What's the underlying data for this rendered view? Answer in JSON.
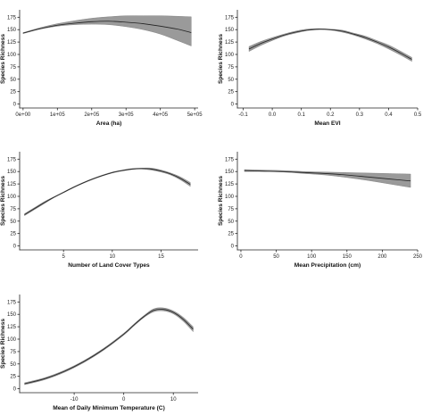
{
  "chart_data": [
    {
      "type": "line",
      "xlabel": "Area (ha)",
      "ylabel": "Species Richness",
      "xlim": [
        -10000,
        510000
      ],
      "ylim": [
        -8,
        190
      ],
      "x_ticks": [
        0,
        100000,
        200000,
        300000,
        400000,
        500000
      ],
      "x_tick_labels": [
        "0e+00",
        "1e+05",
        "2e+05",
        "3e+05",
        "4e+05",
        "5e+05"
      ],
      "y_ticks": [
        0,
        25,
        50,
        75,
        100,
        125,
        150,
        175
      ],
      "y_tick_labels": [
        "0",
        "25",
        "50",
        "75",
        "100",
        "125",
        "150",
        "175"
      ],
      "series": [
        {
          "x": [
            0,
            50000,
            100000,
            150000,
            200000,
            250000,
            300000,
            350000,
            400000,
            450000,
            490000
          ],
          "fit": [
            143,
            152,
            159,
            163,
            166,
            167,
            165,
            162,
            157,
            151,
            144
          ],
          "lower": [
            142,
            151,
            157,
            160,
            161,
            160,
            156,
            150,
            141,
            128,
            117
          ],
          "upper": [
            144,
            154,
            162,
            168,
            173,
            176,
            178,
            178,
            178,
            177,
            176
          ]
        }
      ]
    },
    {
      "type": "line",
      "xlabel": "Mean EVI",
      "ylabel": "Species Richness",
      "xlim": [
        -0.12,
        0.5
      ],
      "ylim": [
        -8,
        190
      ],
      "x_ticks": [
        -0.1,
        0.0,
        0.1,
        0.2,
        0.3,
        0.4,
        0.5
      ],
      "x_tick_labels": [
        "-0.1",
        "0.0",
        "0.1",
        "0.2",
        "0.3",
        "0.4",
        "0.5"
      ],
      "y_ticks": [
        0,
        25,
        50,
        75,
        100,
        125,
        150,
        175
      ],
      "y_tick_labels": [
        "0",
        "25",
        "50",
        "75",
        "100",
        "125",
        "150",
        "175"
      ],
      "series": [
        {
          "x": [
            -0.08,
            -0.04,
            0.0,
            0.04,
            0.08,
            0.12,
            0.16,
            0.2,
            0.24,
            0.28,
            0.32,
            0.36,
            0.4,
            0.44,
            0.48
          ],
          "fit": [
            111,
            122,
            131,
            139,
            145,
            149,
            151,
            150,
            147,
            141,
            134,
            125,
            115,
            103,
            90
          ],
          "lower": [
            106,
            118,
            128,
            137,
            143,
            148,
            150,
            149,
            145,
            139,
            131,
            122,
            111,
            99,
            86
          ],
          "upper": [
            116,
            126,
            134,
            141,
            147,
            151,
            152,
            151,
            149,
            143,
            137,
            128,
            119,
            107,
            94
          ]
        }
      ]
    },
    {
      "type": "line",
      "xlabel": "Number of Land Cover Types",
      "ylabel": "Species Richness",
      "xlim": [
        0.5,
        18.8
      ],
      "ylim": [
        -8,
        190
      ],
      "x_ticks": [
        5,
        10,
        15
      ],
      "x_tick_labels": [
        "5",
        "10",
        "15"
      ],
      "y_ticks": [
        0,
        25,
        50,
        75,
        100,
        125,
        150,
        175
      ],
      "y_tick_labels": [
        "0",
        "25",
        "50",
        "75",
        "100",
        "125",
        "150",
        "175"
      ],
      "series": [
        {
          "x": [
            1,
            2,
            3,
            4,
            5,
            6,
            7,
            8,
            9,
            10,
            11,
            12,
            13,
            14,
            15,
            16,
            17,
            18
          ],
          "fit": [
            63,
            75,
            87,
            98,
            108,
            118,
            127,
            135,
            142,
            148,
            152,
            155,
            156,
            155,
            151,
            145,
            136,
            124
          ],
          "lower": [
            61,
            73,
            85,
            97,
            107,
            117,
            126,
            134,
            141,
            147,
            151,
            154,
            155,
            153,
            149,
            143,
            133,
            120
          ],
          "upper": [
            65,
            77,
            89,
            99,
            109,
            119,
            128,
            136,
            143,
            149,
            153,
            156,
            157,
            157,
            153,
            147,
            139,
            128
          ]
        }
      ]
    },
    {
      "type": "line",
      "xlabel": "Mean Precipitation (cm)",
      "ylabel": "Species Richness",
      "xlim": [
        -5,
        250
      ],
      "ylim": [
        -8,
        190
      ],
      "x_ticks": [
        0,
        50,
        100,
        150,
        200,
        250
      ],
      "x_tick_labels": [
        "0",
        "50",
        "100",
        "150",
        "200",
        "250"
      ],
      "y_ticks": [
        0,
        25,
        50,
        75,
        100,
        125,
        150,
        175
      ],
      "y_tick_labels": [
        "0",
        "25",
        "50",
        "75",
        "100",
        "125",
        "150",
        "175"
      ],
      "series": [
        {
          "x": [
            5,
            30,
            60,
            90,
            120,
            150,
            180,
            210,
            240
          ],
          "fit": [
            152,
            151,
            150,
            148,
            146,
            143,
            139,
            135,
            131
          ],
          "lower": [
            150,
            150,
            149,
            146,
            143,
            138,
            132,
            125,
            118
          ],
          "upper": [
            154,
            153,
            152,
            150,
            149,
            148,
            147,
            146,
            145
          ]
        }
      ]
    },
    {
      "type": "line",
      "xlabel": "Mean of Daily Minimum Temperature (C)",
      "ylabel": "Species Richness",
      "xlim": [
        -21,
        15
      ],
      "ylim": [
        -8,
        190
      ],
      "x_ticks": [
        -10,
        0,
        10
      ],
      "x_tick_labels": [
        "-10",
        "0",
        "10"
      ],
      "y_ticks": [
        0,
        25,
        50,
        75,
        100,
        125,
        150,
        175
      ],
      "y_tick_labels": [
        "0",
        "25",
        "50",
        "75",
        "100",
        "125",
        "150",
        "175"
      ],
      "series": [
        {
          "x": [
            -20,
            -16,
            -12,
            -8,
            -4,
            0,
            2,
            4,
            6,
            8,
            10,
            12,
            14
          ],
          "fit": [
            10,
            20,
            35,
            55,
            80,
            110,
            128,
            145,
            158,
            160,
            154,
            140,
            120
          ],
          "lower": [
            8,
            18,
            33,
            53,
            78,
            108,
            126,
            143,
            155,
            157,
            151,
            136,
            115
          ],
          "upper": [
            12,
            22,
            37,
            57,
            82,
            112,
            130,
            147,
            161,
            163,
            157,
            144,
            125
          ]
        }
      ]
    }
  ]
}
